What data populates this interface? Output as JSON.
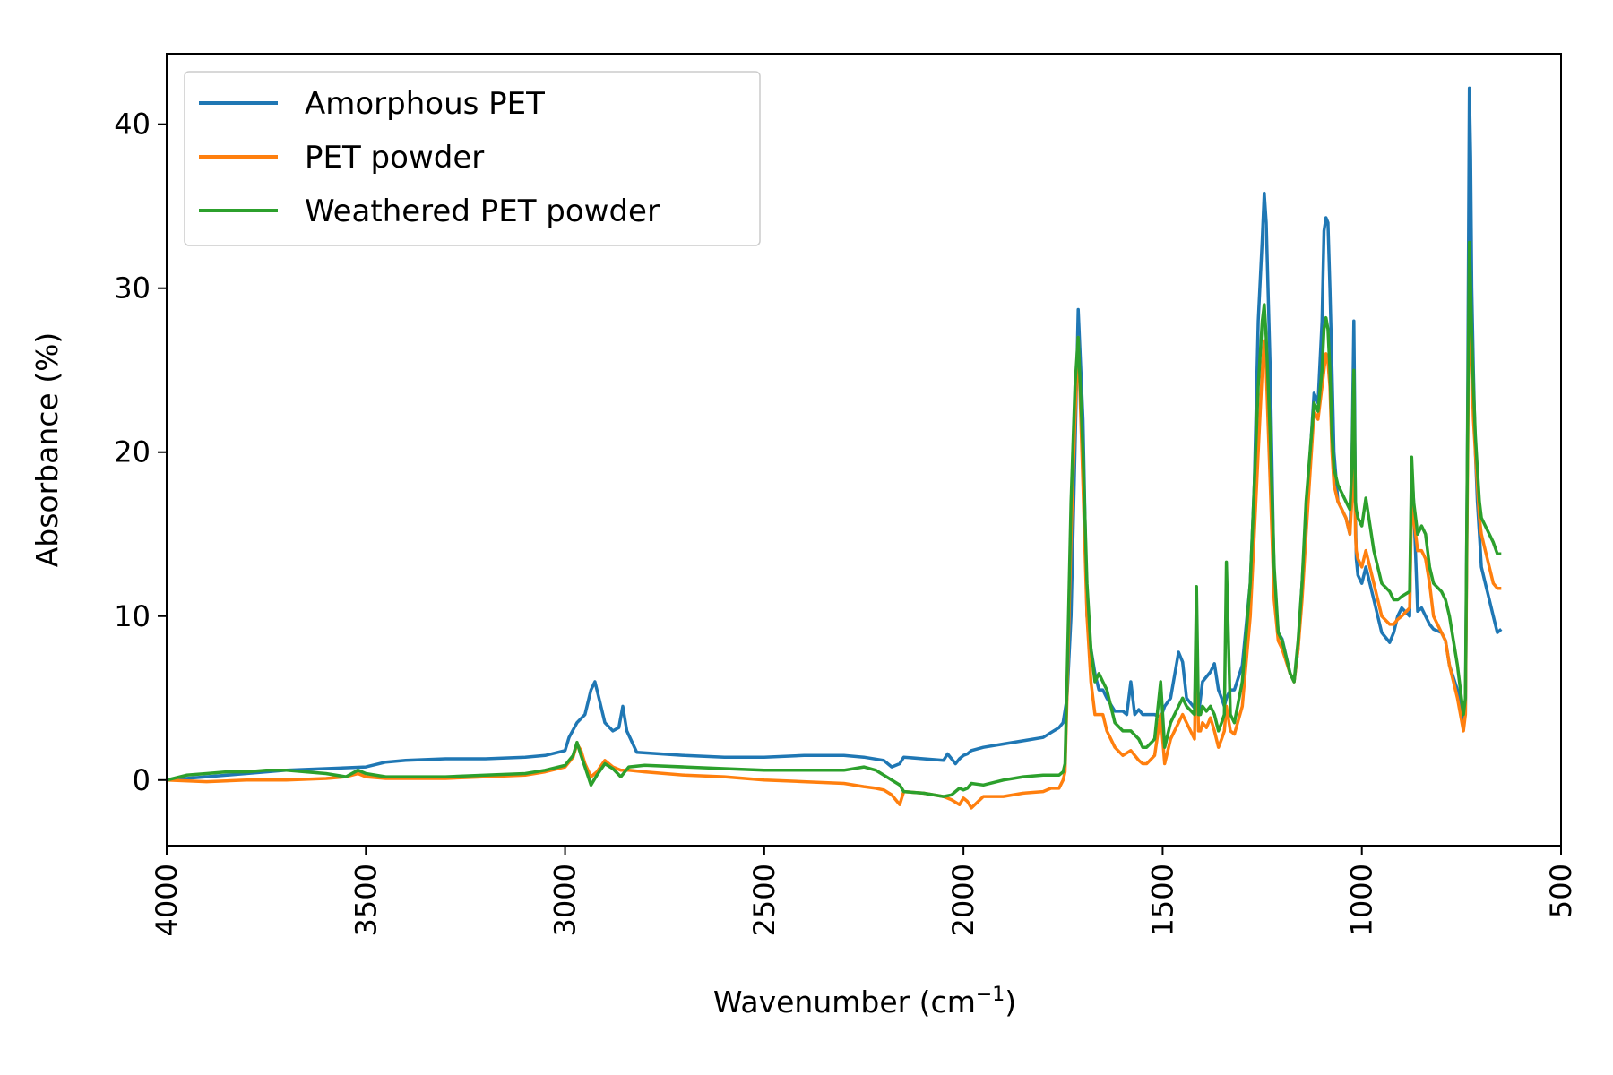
{
  "chart_data": {
    "type": "line",
    "title": "",
    "xlabel": "Wavenumber (cm",
    "xlabel_sup": "−1",
    "xlabel_suffix": ")",
    "ylabel": "Absorbance (%)",
    "xlim": [
      4000,
      500
    ],
    "ylim": [
      -4,
      44.3
    ],
    "x_reversed": true,
    "grid": false,
    "legend_position": "top-left",
    "xticks": [
      4000,
      3500,
      3000,
      2500,
      2000,
      1500,
      1000,
      500
    ],
    "yticks": [
      0,
      10,
      20,
      30,
      40
    ],
    "series": [
      {
        "name": "Amorphous PET",
        "color": "#1f77b4",
        "x": [
          4000,
          3900,
          3800,
          3700,
          3600,
          3500,
          3450,
          3400,
          3300,
          3200,
          3100,
          3050,
          3000,
          2990,
          2970,
          2950,
          2935,
          2925,
          2915,
          2900,
          2880,
          2865,
          2855,
          2845,
          2820,
          2700,
          2600,
          2500,
          2400,
          2300,
          2250,
          2200,
          2180,
          2160,
          2150,
          2100,
          2050,
          2040,
          2020,
          2010,
          2000,
          1990,
          1980,
          1950,
          1900,
          1850,
          1800,
          1780,
          1760,
          1750,
          1740,
          1730,
          1720,
          1712,
          1700,
          1690,
          1680,
          1670,
          1660,
          1650,
          1640,
          1620,
          1600,
          1590,
          1580,
          1570,
          1560,
          1550,
          1540,
          1520,
          1505,
          1495,
          1480,
          1460,
          1450,
          1440,
          1420,
          1415,
          1410,
          1405,
          1400,
          1390,
          1380,
          1370,
          1360,
          1352,
          1345,
          1340,
          1330,
          1320,
          1300,
          1280,
          1270,
          1260,
          1250,
          1245,
          1240,
          1230,
          1220,
          1210,
          1200,
          1180,
          1170,
          1160,
          1150,
          1140,
          1120,
          1110,
          1100,
          1095,
          1090,
          1085,
          1080,
          1075,
          1070,
          1060,
          1050,
          1040,
          1030,
          1025,
          1020,
          1018,
          1016,
          1014,
          1010,
          1000,
          990,
          970,
          950,
          930,
          920,
          910,
          900,
          880,
          875,
          870,
          860,
          850,
          840,
          830,
          820,
          800,
          790,
          780,
          760,
          745,
          740,
          735,
          730,
          727,
          724,
          720,
          715,
          710,
          705,
          700,
          690,
          680,
          670,
          660,
          650
        ],
        "y": [
          0,
          0.2,
          0.4,
          0.6,
          0.7,
          0.8,
          1.1,
          1.2,
          1.3,
          1.3,
          1.4,
          1.5,
          1.8,
          2.6,
          3.5,
          4.0,
          5.5,
          6.0,
          5.0,
          3.5,
          3.0,
          3.2,
          4.5,
          3.0,
          1.7,
          1.5,
          1.4,
          1.4,
          1.5,
          1.5,
          1.4,
          1.2,
          0.8,
          1.0,
          1.4,
          1.3,
          1.2,
          1.6,
          1.0,
          1.3,
          1.5,
          1.6,
          1.8,
          2.0,
          2.2,
          2.4,
          2.6,
          2.9,
          3.2,
          3.5,
          5.0,
          10.0,
          20.0,
          28.7,
          22.0,
          10.0,
          8.0,
          6.5,
          5.5,
          5.5,
          5.0,
          4.2,
          4.2,
          4.0,
          6.0,
          4.0,
          4.3,
          4.0,
          4.0,
          4.0,
          3.8,
          4.5,
          5.0,
          7.8,
          7.2,
          5.0,
          4.4,
          8.0,
          4.0,
          5.0,
          6.0,
          6.3,
          6.6,
          7.1,
          5.5,
          5.0,
          4.5,
          5.0,
          5.5,
          5.5,
          7.0,
          12.0,
          18.0,
          28.0,
          33.0,
          35.8,
          34.0,
          25.0,
          12.0,
          9.0,
          8.6,
          6.5,
          6.0,
          8.0,
          12.0,
          16.0,
          23.6,
          23.0,
          28.0,
          33.5,
          34.3,
          34.0,
          30.0,
          25.0,
          20.0,
          17.0,
          16.5,
          16.0,
          15.0,
          19.0,
          28.0,
          23.0,
          16.0,
          13.5,
          12.5,
          12.0,
          13.0,
          11.0,
          9.0,
          8.4,
          9.0,
          10.0,
          10.5,
          10.0,
          19.0,
          17.0,
          10.3,
          10.5,
          10.0,
          9.5,
          9.2,
          9.0,
          8.5,
          7.0,
          5.5,
          3.6,
          4.0,
          20.0,
          42.2,
          38.0,
          30.0,
          25.0,
          20.0,
          17.0,
          15.0,
          13.0,
          12.0,
          11.0,
          10.0,
          9.0,
          9.2
        ]
      },
      {
        "name": "PET powder",
        "color": "#ff7f0e",
        "x": [
          4000,
          3900,
          3800,
          3700,
          3600,
          3550,
          3520,
          3500,
          3450,
          3400,
          3300,
          3200,
          3100,
          3050,
          3000,
          2980,
          2970,
          2960,
          2950,
          2935,
          2920,
          2900,
          2880,
          2860,
          2840,
          2800,
          2700,
          2600,
          2500,
          2400,
          2300,
          2250,
          2220,
          2200,
          2180,
          2160,
          2150,
          2100,
          2050,
          2030,
          2010,
          2000,
          1990,
          1980,
          1950,
          1900,
          1850,
          1800,
          1780,
          1760,
          1750,
          1745,
          1740,
          1730,
          1720,
          1712,
          1700,
          1690,
          1680,
          1670,
          1660,
          1650,
          1640,
          1620,
          1600,
          1580,
          1560,
          1550,
          1540,
          1520,
          1505,
          1495,
          1480,
          1460,
          1450,
          1440,
          1420,
          1415,
          1410,
          1405,
          1400,
          1390,
          1380,
          1370,
          1360,
          1352,
          1345,
          1340,
          1330,
          1320,
          1300,
          1280,
          1270,
          1260,
          1250,
          1245,
          1240,
          1230,
          1220,
          1210,
          1200,
          1180,
          1170,
          1160,
          1150,
          1140,
          1120,
          1110,
          1100,
          1095,
          1090,
          1085,
          1080,
          1075,
          1070,
          1060,
          1050,
          1040,
          1030,
          1025,
          1020,
          1018,
          1016,
          1014,
          1010,
          1000,
          990,
          970,
          950,
          930,
          920,
          910,
          900,
          880,
          875,
          870,
          860,
          850,
          840,
          830,
          820,
          800,
          790,
          780,
          760,
          745,
          740,
          735,
          730,
          727,
          724,
          720,
          715,
          710,
          705,
          700,
          690,
          680,
          670,
          660,
          650
        ],
        "y": [
          0,
          -0.1,
          0,
          0,
          0.1,
          0.2,
          0.4,
          0.2,
          0.1,
          0.1,
          0.1,
          0.2,
          0.3,
          0.5,
          0.8,
          1.4,
          2.2,
          1.8,
          1.0,
          0.2,
          0.5,
          1.2,
          0.8,
          0.6,
          0.6,
          0.5,
          0.3,
          0.2,
          0,
          -0.1,
          -0.2,
          -0.4,
          -0.5,
          -0.6,
          -0.9,
          -1.5,
          -0.7,
          -0.8,
          -1.0,
          -1.2,
          -1.5,
          -1.1,
          -1.3,
          -1.7,
          -1.0,
          -1.0,
          -0.8,
          -0.7,
          -0.5,
          -0.5,
          0,
          0.5,
          5.0,
          15.0,
          22.0,
          27.0,
          18.0,
          10.0,
          6.0,
          4.0,
          4.0,
          4.0,
          3.0,
          2.0,
          1.5,
          1.8,
          1.2,
          1.0,
          1.0,
          1.5,
          4.0,
          1.0,
          2.5,
          3.5,
          4.0,
          3.5,
          2.5,
          10.0,
          3.0,
          3.0,
          3.5,
          3.2,
          3.8,
          3.0,
          2.0,
          2.5,
          3.0,
          4.5,
          3.0,
          2.8,
          4.5,
          10.0,
          15.0,
          20.0,
          25.0,
          26.8,
          25.0,
          18.0,
          11.0,
          8.5,
          8.0,
          6.5,
          6.0,
          8.0,
          11.0,
          15.0,
          22.5,
          22.0,
          24.0,
          25.0,
          26.0,
          25.5,
          24.0,
          20.0,
          18.0,
          17.0,
          16.5,
          16.0,
          15.0,
          17.0,
          23.0,
          19.0,
          15.0,
          14.0,
          13.5,
          13.0,
          14.0,
          12.0,
          10.0,
          9.5,
          9.5,
          9.8,
          10.0,
          10.5,
          17.0,
          16.0,
          14.0,
          14.0,
          13.5,
          12.0,
          10.0,
          9.0,
          8.5,
          7.0,
          5.0,
          3.0,
          4.0,
          18.0,
          31.0,
          28.0,
          25.0,
          22.0,
          20.0,
          18.0,
          16.0,
          15.0,
          14.0,
          13.0,
          12.0,
          11.7,
          11.7
        ]
      },
      {
        "name": "Weathered PET powder",
        "color": "#2ca02c",
        "x": [
          4000,
          3950,
          3900,
          3850,
          3800,
          3750,
          3700,
          3650,
          3600,
          3550,
          3520,
          3500,
          3450,
          3400,
          3300,
          3200,
          3100,
          3050,
          3000,
          2980,
          2970,
          2960,
          2950,
          2935,
          2920,
          2900,
          2880,
          2860,
          2840,
          2800,
          2700,
          2600,
          2500,
          2400,
          2300,
          2250,
          2220,
          2200,
          2180,
          2160,
          2150,
          2100,
          2050,
          2030,
          2010,
          2000,
          1990,
          1980,
          1950,
          1900,
          1850,
          1800,
          1780,
          1760,
          1750,
          1745,
          1740,
          1730,
          1720,
          1712,
          1700,
          1690,
          1680,
          1670,
          1660,
          1650,
          1640,
          1620,
          1600,
          1580,
          1560,
          1550,
          1540,
          1520,
          1505,
          1495,
          1480,
          1460,
          1450,
          1440,
          1420,
          1415,
          1410,
          1405,
          1400,
          1390,
          1380,
          1370,
          1360,
          1352,
          1345,
          1340,
          1330,
          1320,
          1300,
          1280,
          1270,
          1260,
          1250,
          1245,
          1240,
          1230,
          1220,
          1210,
          1200,
          1180,
          1170,
          1160,
          1150,
          1140,
          1120,
          1110,
          1100,
          1095,
          1090,
          1085,
          1080,
          1075,
          1070,
          1060,
          1050,
          1040,
          1030,
          1025,
          1020,
          1018,
          1016,
          1014,
          1010,
          1000,
          990,
          970,
          950,
          930,
          920,
          910,
          900,
          880,
          875,
          870,
          860,
          850,
          840,
          830,
          820,
          800,
          790,
          780,
          760,
          745,
          740,
          735,
          730,
          727,
          724,
          720,
          715,
          710,
          705,
          700,
          690,
          680,
          670,
          660,
          650
        ],
        "y": [
          0,
          0.3,
          0.4,
          0.5,
          0.5,
          0.6,
          0.6,
          0.5,
          0.4,
          0.2,
          0.6,
          0.4,
          0.2,
          0.2,
          0.2,
          0.3,
          0.4,
          0.6,
          0.9,
          1.5,
          2.3,
          1.5,
          0.8,
          -0.3,
          0.3,
          1.0,
          0.7,
          0.2,
          0.8,
          0.9,
          0.8,
          0.7,
          0.6,
          0.6,
          0.6,
          0.8,
          0.6,
          0.3,
          0,
          -0.3,
          -0.7,
          -0.8,
          -1.0,
          -0.9,
          -0.5,
          -0.6,
          -0.5,
          -0.2,
          -0.3,
          0,
          0.2,
          0.3,
          0.3,
          0.3,
          0.5,
          1.0,
          6.0,
          17.0,
          24.0,
          27.0,
          20.0,
          12.0,
          8.0,
          6.0,
          6.5,
          6.0,
          5.5,
          3.5,
          3.0,
          3.0,
          2.5,
          2.0,
          2.0,
          2.5,
          6.0,
          2.0,
          3.5,
          4.5,
          5.0,
          4.5,
          4.0,
          11.8,
          4.0,
          4.0,
          4.5,
          4.2,
          4.5,
          4.0,
          3.0,
          3.5,
          4.0,
          13.3,
          4.0,
          3.5,
          6.0,
          12.0,
          18.0,
          24.0,
          28.0,
          29.0,
          27.0,
          21.0,
          13.0,
          9.0,
          8.5,
          6.5,
          6.0,
          8.5,
          12.0,
          17.0,
          23.0,
          22.5,
          25.0,
          27.5,
          28.2,
          27.5,
          25.0,
          21.0,
          19.0,
          18.0,
          17.5,
          17.0,
          16.5,
          19.0,
          25.0,
          21.0,
          17.0,
          16.5,
          16.0,
          15.5,
          17.2,
          14.0,
          12.0,
          11.5,
          11.0,
          11.0,
          11.2,
          11.5,
          19.7,
          17.0,
          15.0,
          15.5,
          15.0,
          13.0,
          12.0,
          11.5,
          11.0,
          10.0,
          7.0,
          4.0,
          5.0,
          20.0,
          32.8,
          30.0,
          27.0,
          24.0,
          21.0,
          19.0,
          17.0,
          16.0,
          15.5,
          15.0,
          14.5,
          13.8,
          13.8
        ]
      }
    ]
  }
}
